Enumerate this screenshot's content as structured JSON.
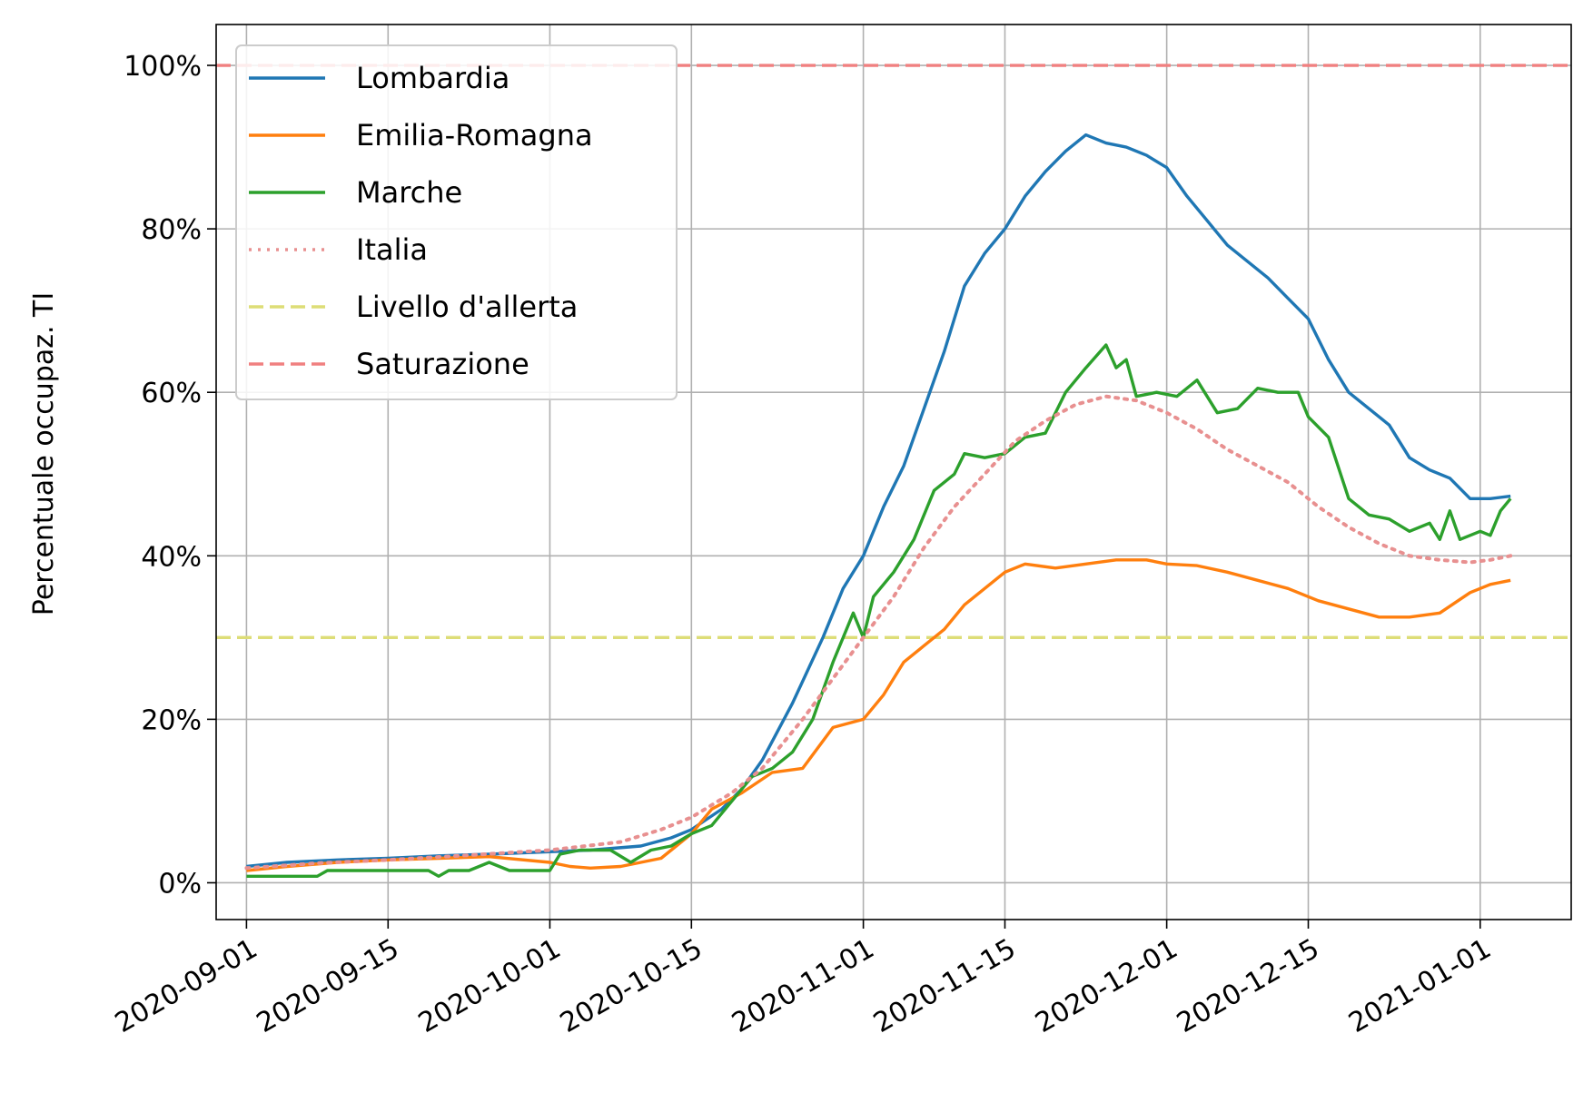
{
  "chart_data": {
    "type": "line",
    "ylabel": "Percentuale occupaz. TI",
    "xlabel": "",
    "title": "",
    "x_range": [
      "2020-08-29",
      "2021-01-10"
    ],
    "ylim": [
      -0.045,
      1.05
    ],
    "grid": true,
    "legend_position": "top-left",
    "x_ticks": [
      "2020-09-01",
      "2020-09-15",
      "2020-10-01",
      "2020-10-15",
      "2020-11-01",
      "2020-11-15",
      "2020-12-01",
      "2020-12-15",
      "2021-01-01"
    ],
    "y_ticks": [
      {
        "value": 0,
        "label": "0%"
      },
      {
        "value": 0.2,
        "label": "20%"
      },
      {
        "value": 0.4,
        "label": "40%"
      },
      {
        "value": 0.6,
        "label": "60%"
      },
      {
        "value": 0.8,
        "label": "80%"
      },
      {
        "value": 1.0,
        "label": "100%"
      }
    ],
    "series": [
      {
        "name": "Lombardia",
        "color": "#1f77b4",
        "style": "solid",
        "points": [
          [
            "2020-09-01",
            0.02
          ],
          [
            "2020-09-05",
            0.025
          ],
          [
            "2020-09-10",
            0.028
          ],
          [
            "2020-09-15",
            0.03
          ],
          [
            "2020-09-20",
            0.033
          ],
          [
            "2020-09-25",
            0.035
          ],
          [
            "2020-10-01",
            0.038
          ],
          [
            "2020-10-05",
            0.04
          ],
          [
            "2020-10-10",
            0.045
          ],
          [
            "2020-10-13",
            0.055
          ],
          [
            "2020-10-15",
            0.065
          ],
          [
            "2020-10-18",
            0.09
          ],
          [
            "2020-10-20",
            0.115
          ],
          [
            "2020-10-22",
            0.15
          ],
          [
            "2020-10-25",
            0.22
          ],
          [
            "2020-10-28",
            0.3
          ],
          [
            "2020-10-30",
            0.36
          ],
          [
            "2020-11-01",
            0.4
          ],
          [
            "2020-11-03",
            0.46
          ],
          [
            "2020-11-05",
            0.51
          ],
          [
            "2020-11-07",
            0.58
          ],
          [
            "2020-11-09",
            0.65
          ],
          [
            "2020-11-11",
            0.73
          ],
          [
            "2020-11-13",
            0.77
          ],
          [
            "2020-11-15",
            0.8
          ],
          [
            "2020-11-17",
            0.84
          ],
          [
            "2020-11-19",
            0.87
          ],
          [
            "2020-11-21",
            0.895
          ],
          [
            "2020-11-23",
            0.915
          ],
          [
            "2020-11-25",
            0.905
          ],
          [
            "2020-11-27",
            0.9
          ],
          [
            "2020-11-29",
            0.89
          ],
          [
            "2020-12-01",
            0.875
          ],
          [
            "2020-12-03",
            0.84
          ],
          [
            "2020-12-05",
            0.81
          ],
          [
            "2020-12-07",
            0.78
          ],
          [
            "2020-12-09",
            0.76
          ],
          [
            "2020-12-11",
            0.74
          ],
          [
            "2020-12-13",
            0.715
          ],
          [
            "2020-12-15",
            0.69
          ],
          [
            "2020-12-17",
            0.64
          ],
          [
            "2020-12-19",
            0.6
          ],
          [
            "2020-12-21",
            0.58
          ],
          [
            "2020-12-23",
            0.56
          ],
          [
            "2020-12-25",
            0.52
          ],
          [
            "2020-12-27",
            0.505
          ],
          [
            "2020-12-29",
            0.495
          ],
          [
            "2020-12-31",
            0.47
          ],
          [
            "2021-01-02",
            0.47
          ],
          [
            "2021-01-04",
            0.473
          ]
        ]
      },
      {
        "name": "Emilia-Romagna",
        "color": "#ff7f0e",
        "style": "solid",
        "points": [
          [
            "2020-09-01",
            0.015
          ],
          [
            "2020-09-05",
            0.02
          ],
          [
            "2020-09-10",
            0.025
          ],
          [
            "2020-09-15",
            0.028
          ],
          [
            "2020-09-20",
            0.03
          ],
          [
            "2020-09-25",
            0.032
          ],
          [
            "2020-10-01",
            0.025
          ],
          [
            "2020-10-03",
            0.02
          ],
          [
            "2020-10-05",
            0.018
          ],
          [
            "2020-10-08",
            0.02
          ],
          [
            "2020-10-12",
            0.03
          ],
          [
            "2020-10-15",
            0.06
          ],
          [
            "2020-10-17",
            0.09
          ],
          [
            "2020-10-20",
            0.11
          ],
          [
            "2020-10-23",
            0.135
          ],
          [
            "2020-10-26",
            0.14
          ],
          [
            "2020-10-29",
            0.19
          ],
          [
            "2020-11-01",
            0.2
          ],
          [
            "2020-11-03",
            0.23
          ],
          [
            "2020-11-05",
            0.27
          ],
          [
            "2020-11-07",
            0.29
          ],
          [
            "2020-11-09",
            0.31
          ],
          [
            "2020-11-11",
            0.34
          ],
          [
            "2020-11-13",
            0.36
          ],
          [
            "2020-11-15",
            0.38
          ],
          [
            "2020-11-17",
            0.39
          ],
          [
            "2020-11-20",
            0.385
          ],
          [
            "2020-11-23",
            0.39
          ],
          [
            "2020-11-26",
            0.395
          ],
          [
            "2020-11-29",
            0.395
          ],
          [
            "2020-12-01",
            0.39
          ],
          [
            "2020-12-04",
            0.388
          ],
          [
            "2020-12-07",
            0.38
          ],
          [
            "2020-12-10",
            0.37
          ],
          [
            "2020-12-13",
            0.36
          ],
          [
            "2020-12-16",
            0.345
          ],
          [
            "2020-12-19",
            0.335
          ],
          [
            "2020-12-22",
            0.325
          ],
          [
            "2020-12-25",
            0.325
          ],
          [
            "2020-12-28",
            0.33
          ],
          [
            "2020-12-31",
            0.355
          ],
          [
            "2021-01-02",
            0.365
          ],
          [
            "2021-01-04",
            0.37
          ]
        ]
      },
      {
        "name": "Marche",
        "color": "#2ca02c",
        "style": "solid",
        "points": [
          [
            "2020-09-01",
            0.008
          ],
          [
            "2020-09-05",
            0.008
          ],
          [
            "2020-09-08",
            0.008
          ],
          [
            "2020-09-09",
            0.015
          ],
          [
            "2020-09-15",
            0.015
          ],
          [
            "2020-09-19",
            0.015
          ],
          [
            "2020-09-20",
            0.008
          ],
          [
            "2020-09-21",
            0.015
          ],
          [
            "2020-09-23",
            0.015
          ],
          [
            "2020-09-25",
            0.025
          ],
          [
            "2020-09-27",
            0.015
          ],
          [
            "2020-09-29",
            0.015
          ],
          [
            "2020-10-01",
            0.015
          ],
          [
            "2020-10-02",
            0.035
          ],
          [
            "2020-10-04",
            0.04
          ],
          [
            "2020-10-07",
            0.04
          ],
          [
            "2020-10-09",
            0.025
          ],
          [
            "2020-10-11",
            0.04
          ],
          [
            "2020-10-13",
            0.045
          ],
          [
            "2020-10-15",
            0.06
          ],
          [
            "2020-10-17",
            0.07
          ],
          [
            "2020-10-19",
            0.1
          ],
          [
            "2020-10-21",
            0.13
          ],
          [
            "2020-10-23",
            0.14
          ],
          [
            "2020-10-25",
            0.16
          ],
          [
            "2020-10-27",
            0.2
          ],
          [
            "2020-10-29",
            0.27
          ],
          [
            "2020-10-31",
            0.33
          ],
          [
            "2020-11-01",
            0.3
          ],
          [
            "2020-11-02",
            0.35
          ],
          [
            "2020-11-04",
            0.38
          ],
          [
            "2020-11-06",
            0.42
          ],
          [
            "2020-11-08",
            0.48
          ],
          [
            "2020-11-10",
            0.5
          ],
          [
            "2020-11-11",
            0.525
          ],
          [
            "2020-11-13",
            0.52
          ],
          [
            "2020-11-15",
            0.525
          ],
          [
            "2020-11-17",
            0.545
          ],
          [
            "2020-11-19",
            0.55
          ],
          [
            "2020-11-21",
            0.6
          ],
          [
            "2020-11-23",
            0.63
          ],
          [
            "2020-11-25",
            0.658
          ],
          [
            "2020-11-26",
            0.63
          ],
          [
            "2020-11-27",
            0.64
          ],
          [
            "2020-11-28",
            0.595
          ],
          [
            "2020-11-30",
            0.6
          ],
          [
            "2020-12-02",
            0.595
          ],
          [
            "2020-12-04",
            0.615
          ],
          [
            "2020-12-06",
            0.575
          ],
          [
            "2020-12-08",
            0.58
          ],
          [
            "2020-12-10",
            0.605
          ],
          [
            "2020-12-12",
            0.6
          ],
          [
            "2020-12-14",
            0.6
          ],
          [
            "2020-12-15",
            0.57
          ],
          [
            "2020-12-17",
            0.545
          ],
          [
            "2020-12-19",
            0.47
          ],
          [
            "2020-12-21",
            0.45
          ],
          [
            "2020-12-23",
            0.445
          ],
          [
            "2020-12-25",
            0.43
          ],
          [
            "2020-12-27",
            0.44
          ],
          [
            "2020-12-28",
            0.42
          ],
          [
            "2020-12-29",
            0.455
          ],
          [
            "2020-12-30",
            0.42
          ],
          [
            "2021-01-01",
            0.43
          ],
          [
            "2021-01-02",
            0.425
          ],
          [
            "2021-01-03",
            0.455
          ],
          [
            "2021-01-04",
            0.47
          ]
        ]
      },
      {
        "name": "Italia",
        "color": "#e89090",
        "style": "dotted",
        "points": [
          [
            "2020-09-01",
            0.018
          ],
          [
            "2020-09-08",
            0.024
          ],
          [
            "2020-09-15",
            0.028
          ],
          [
            "2020-09-22",
            0.033
          ],
          [
            "2020-10-01",
            0.04
          ],
          [
            "2020-10-08",
            0.05
          ],
          [
            "2020-10-12",
            0.065
          ],
          [
            "2020-10-15",
            0.08
          ],
          [
            "2020-10-19",
            0.11
          ],
          [
            "2020-10-22",
            0.14
          ],
          [
            "2020-10-26",
            0.2
          ],
          [
            "2020-10-29",
            0.25
          ],
          [
            "2020-11-01",
            0.3
          ],
          [
            "2020-11-04",
            0.35
          ],
          [
            "2020-11-07",
            0.41
          ],
          [
            "2020-11-10",
            0.46
          ],
          [
            "2020-11-13",
            0.5
          ],
          [
            "2020-11-16",
            0.54
          ],
          [
            "2020-11-19",
            0.565
          ],
          [
            "2020-11-22",
            0.585
          ],
          [
            "2020-11-25",
            0.595
          ],
          [
            "2020-11-28",
            0.59
          ],
          [
            "2020-12-01",
            0.575
          ],
          [
            "2020-12-04",
            0.555
          ],
          [
            "2020-12-07",
            0.53
          ],
          [
            "2020-12-10",
            0.51
          ],
          [
            "2020-12-13",
            0.49
          ],
          [
            "2020-12-16",
            0.46
          ],
          [
            "2020-12-19",
            0.435
          ],
          [
            "2020-12-22",
            0.415
          ],
          [
            "2020-12-25",
            0.4
          ],
          [
            "2020-12-28",
            0.395
          ],
          [
            "2020-12-31",
            0.392
          ],
          [
            "2021-01-02",
            0.395
          ],
          [
            "2021-01-04",
            0.4
          ]
        ]
      }
    ],
    "reference_lines": [
      {
        "name": "Livello d'allerta",
        "value": 0.3,
        "color": "#dddd77",
        "style": "dashed"
      },
      {
        "name": "Saturazione",
        "value": 1.0,
        "color": "#f08080",
        "style": "dashed"
      }
    ]
  }
}
